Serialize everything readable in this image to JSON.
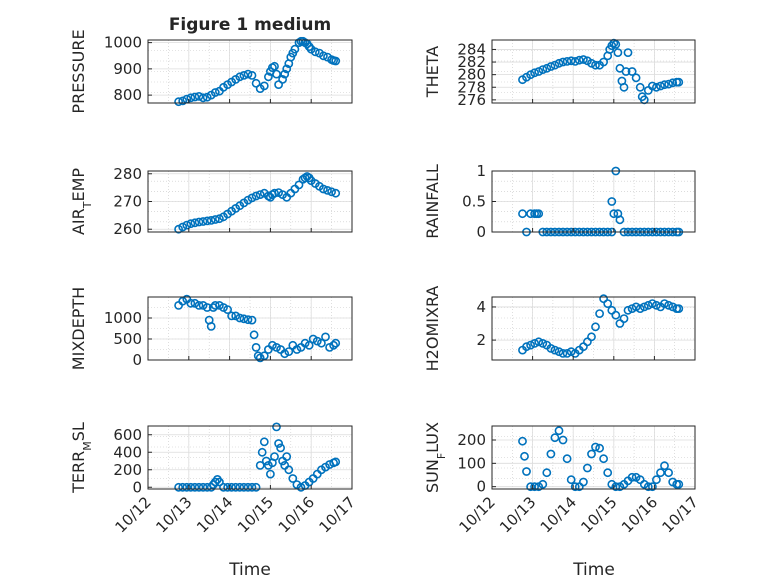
{
  "figure_title": "Figure 1 medium",
  "x_axis_label": "Time",
  "x_ticks": [
    "10/12",
    "10/13",
    "10/14",
    "10/15",
    "10/16",
    "10/17"
  ],
  "colors": {
    "marker": "#0072BD",
    "axes": "#262626",
    "grid": "#c8c8c8",
    "background": "#ffffff"
  },
  "chart_data": [
    {
      "type": "scatter",
      "id": "pressure",
      "ylabel": "PRESSURE",
      "ylim": [
        770,
        1010
      ],
      "yticks": [
        800,
        900,
        1000
      ],
      "xlim": [
        0,
        5
      ],
      "x": [
        0.75,
        0.85,
        0.95,
        1.05,
        1.15,
        1.25,
        1.35,
        1.45,
        1.55,
        1.65,
        1.75,
        1.85,
        1.95,
        2.05,
        2.15,
        2.25,
        2.35,
        2.45,
        2.55,
        2.65,
        2.75,
        2.85,
        2.95,
        3.0,
        3.05,
        3.1,
        3.15,
        3.2,
        3.3,
        3.35,
        3.4,
        3.45,
        3.5,
        3.55,
        3.6,
        3.7,
        3.75,
        3.8,
        3.85,
        3.9,
        3.95,
        4.0,
        4.1,
        4.2,
        4.3,
        4.4,
        4.5,
        4.55,
        4.6
      ],
      "y": [
        775,
        778,
        785,
        790,
        793,
        795,
        790,
        792,
        800,
        810,
        815,
        830,
        840,
        850,
        860,
        870,
        875,
        880,
        875,
        845,
        825,
        835,
        870,
        890,
        905,
        910,
        880,
        840,
        860,
        880,
        900,
        920,
        945,
        960,
        975,
        1000,
        1005,
        1005,
        1000,
        995,
        985,
        975,
        965,
        960,
        950,
        945,
        935,
        932,
        930
      ]
    },
    {
      "type": "scatter",
      "id": "theta",
      "ylabel": "THETA",
      "ylim": [
        275.5,
        285.5
      ],
      "yticks": [
        276,
        278,
        280,
        282,
        284
      ],
      "xlim": [
        0,
        5
      ],
      "x": [
        0.75,
        0.85,
        0.95,
        1.05,
        1.15,
        1.25,
        1.35,
        1.45,
        1.55,
        1.65,
        1.75,
        1.85,
        1.95,
        2.05,
        2.15,
        2.25,
        2.35,
        2.45,
        2.55,
        2.65,
        2.75,
        2.85,
        2.9,
        2.95,
        3.0,
        3.05,
        3.1,
        3.15,
        3.2,
        3.25,
        3.3,
        3.35,
        3.45,
        3.55,
        3.65,
        3.7,
        3.75,
        3.85,
        3.95,
        4.05,
        4.15,
        4.25,
        4.35,
        4.45,
        4.55,
        4.6
      ],
      "y": [
        279.2,
        279.6,
        280.0,
        280.3,
        280.5,
        280.8,
        281.0,
        281.3,
        281.5,
        281.8,
        282.0,
        282.1,
        282.2,
        282.1,
        282.3,
        282.4,
        282.2,
        281.8,
        281.5,
        281.5,
        282.0,
        283.0,
        284.0,
        284.6,
        285.0,
        284.8,
        283.5,
        281.0,
        279.0,
        278.0,
        280.5,
        283.5,
        280.5,
        279.5,
        278.0,
        276.5,
        276.0,
        277.5,
        278.2,
        278.0,
        278.2,
        278.4,
        278.5,
        278.7,
        278.8,
        278.8
      ]
    },
    {
      "type": "scatter",
      "id": "air_temp",
      "ylabel": "AIR_TEMP",
      "ylim": [
        259,
        281
      ],
      "yticks": [
        260,
        270,
        280
      ],
      "xlim": [
        0,
        5
      ],
      "x": [
        0.75,
        0.85,
        0.95,
        1.05,
        1.15,
        1.25,
        1.35,
        1.45,
        1.55,
        1.65,
        1.75,
        1.85,
        1.95,
        2.05,
        2.15,
        2.25,
        2.35,
        2.45,
        2.55,
        2.65,
        2.75,
        2.85,
        2.95,
        3.0,
        3.05,
        3.1,
        3.2,
        3.3,
        3.4,
        3.5,
        3.6,
        3.7,
        3.8,
        3.85,
        3.9,
        3.95,
        4.0,
        4.1,
        4.2,
        4.3,
        4.4,
        4.5,
        4.6
      ],
      "y": [
        260.0,
        260.8,
        261.5,
        262.0,
        262.3,
        262.6,
        262.8,
        263.0,
        263.2,
        263.5,
        263.8,
        264.5,
        265.5,
        266.5,
        267.5,
        268.5,
        269.5,
        270.5,
        271.3,
        272.0,
        272.5,
        273.0,
        272.0,
        271.5,
        272.5,
        273.0,
        273.2,
        272.5,
        271.5,
        273.0,
        274.5,
        276.0,
        278.0,
        278.5,
        279.0,
        278.5,
        277.5,
        276.5,
        275.5,
        274.5,
        274.0,
        273.5,
        273.0
      ]
    },
    {
      "type": "scatter",
      "id": "rainfall",
      "ylabel": "RAINFALL",
      "ylim": [
        0,
        1
      ],
      "yticks": [
        0,
        0.5,
        1
      ],
      "xlim": [
        0,
        5
      ],
      "x": [
        0.75,
        0.85,
        0.95,
        1.05,
        1.1,
        1.15,
        1.25,
        1.35,
        1.45,
        1.55,
        1.65,
        1.75,
        1.85,
        1.95,
        2.05,
        2.15,
        2.25,
        2.35,
        2.45,
        2.55,
        2.65,
        2.75,
        2.85,
        2.95,
        2.95,
        3.0,
        3.05,
        3.1,
        3.15,
        3.25,
        3.35,
        3.45,
        3.55,
        3.65,
        3.75,
        3.85,
        3.95,
        4.05,
        4.15,
        4.25,
        4.35,
        4.45,
        4.55,
        4.6
      ],
      "y": [
        0.3,
        0,
        0.3,
        0.3,
        0.3,
        0.3,
        0,
        0,
        0,
        0,
        0,
        0,
        0,
        0,
        0,
        0,
        0,
        0,
        0,
        0,
        0,
        0,
        0,
        0.5,
        0,
        0.3,
        1.0,
        0.3,
        0.2,
        0,
        0,
        0,
        0,
        0,
        0,
        0,
        0,
        0,
        0,
        0,
        0,
        0,
        0,
        0
      ]
    },
    {
      "type": "scatter",
      "id": "mixdepth",
      "ylabel": "MIXDEPTH",
      "ylim": [
        0,
        1500
      ],
      "yticks": [
        0,
        500,
        1000
      ],
      "xlim": [
        0,
        5
      ],
      "x": [
        0.75,
        0.85,
        0.95,
        1.05,
        1.15,
        1.25,
        1.35,
        1.45,
        1.5,
        1.55,
        1.6,
        1.65,
        1.75,
        1.85,
        1.95,
        2.05,
        2.15,
        2.25,
        2.35,
        2.45,
        2.55,
        2.6,
        2.65,
        2.7,
        2.75,
        2.85,
        2.95,
        3.05,
        3.15,
        3.25,
        3.35,
        3.45,
        3.55,
        3.65,
        3.75,
        3.85,
        3.95,
        4.05,
        4.15,
        4.25,
        4.35,
        4.45,
        4.55,
        4.6
      ],
      "y": [
        1300,
        1400,
        1450,
        1350,
        1350,
        1300,
        1300,
        1250,
        950,
        800,
        1250,
        1300,
        1300,
        1250,
        1200,
        1050,
        1050,
        1000,
        980,
        960,
        950,
        600,
        300,
        100,
        50,
        100,
        250,
        350,
        300,
        250,
        150,
        200,
        350,
        250,
        300,
        400,
        350,
        500,
        450,
        400,
        550,
        300,
        350,
        400
      ]
    },
    {
      "type": "scatter",
      "id": "h2omixra",
      "ylabel": "H2OMIXRA",
      "ylim": [
        0.8,
        4.6
      ],
      "yticks": [
        2,
        4
      ],
      "xlim": [
        0,
        5
      ],
      "x": [
        0.75,
        0.85,
        0.95,
        1.05,
        1.15,
        1.25,
        1.35,
        1.45,
        1.55,
        1.65,
        1.75,
        1.85,
        1.95,
        2.05,
        2.15,
        2.25,
        2.35,
        2.45,
        2.55,
        2.65,
        2.75,
        2.85,
        2.95,
        3.05,
        3.15,
        3.25,
        3.35,
        3.45,
        3.55,
        3.65,
        3.75,
        3.85,
        3.95,
        4.05,
        4.15,
        4.25,
        4.35,
        4.45,
        4.55,
        4.6
      ],
      "y": [
        1.4,
        1.6,
        1.7,
        1.8,
        1.9,
        1.8,
        1.7,
        1.5,
        1.4,
        1.3,
        1.2,
        1.2,
        1.3,
        1.2,
        1.4,
        1.6,
        1.9,
        2.2,
        2.8,
        3.6,
        4.5,
        4.2,
        3.8,
        3.5,
        3.0,
        3.3,
        3.8,
        3.9,
        4.0,
        3.9,
        4.0,
        4.1,
        4.2,
        4.1,
        4.0,
        4.2,
        4.1,
        4.0,
        3.9,
        3.9
      ]
    },
    {
      "type": "scatter",
      "id": "terr_msl",
      "ylabel": "TERR_MSL",
      "ylim": [
        -20,
        700
      ],
      "yticks": [
        0,
        200,
        400,
        600
      ],
      "xlim": [
        0,
        5
      ],
      "x": [
        0.75,
        0.85,
        0.95,
        1.05,
        1.15,
        1.25,
        1.35,
        1.45,
        1.55,
        1.6,
        1.65,
        1.7,
        1.75,
        1.85,
        1.95,
        2.05,
        2.15,
        2.25,
        2.35,
        2.45,
        2.55,
        2.65,
        2.75,
        2.8,
        2.85,
        2.9,
        2.95,
        3.0,
        3.05,
        3.1,
        3.15,
        3.2,
        3.25,
        3.3,
        3.35,
        3.4,
        3.45,
        3.55,
        3.65,
        3.75,
        3.85,
        3.95,
        4.05,
        4.15,
        4.25,
        4.35,
        4.45,
        4.55,
        4.6
      ],
      "y": [
        0,
        0,
        0,
        0,
        0,
        0,
        0,
        0,
        0,
        30,
        60,
        90,
        60,
        0,
        0,
        0,
        0,
        0,
        0,
        0,
        0,
        0,
        250,
        400,
        520,
        300,
        250,
        150,
        280,
        350,
        690,
        500,
        450,
        300,
        250,
        350,
        200,
        100,
        30,
        0,
        20,
        60,
        100,
        150,
        200,
        230,
        260,
        280,
        290
      ]
    },
    {
      "type": "scatter",
      "id": "sun_flux",
      "ylabel": "SUN_FLUX",
      "ylim": [
        -10,
        260
      ],
      "yticks": [
        0,
        100,
        200
      ],
      "xlim": [
        0,
        5
      ],
      "x": [
        0.75,
        0.8,
        0.85,
        0.95,
        1.05,
        1.15,
        1.25,
        1.35,
        1.45,
        1.55,
        1.65,
        1.75,
        1.85,
        1.95,
        2.05,
        2.15,
        2.25,
        2.35,
        2.45,
        2.55,
        2.65,
        2.75,
        2.85,
        2.95,
        3.05,
        3.15,
        3.25,
        3.35,
        3.45,
        3.55,
        3.65,
        3.75,
        3.85,
        3.95,
        4.05,
        4.15,
        4.25,
        4.35,
        4.45,
        4.55,
        4.6
      ],
      "y": [
        195,
        130,
        65,
        0,
        0,
        0,
        10,
        60,
        140,
        210,
        240,
        200,
        120,
        30,
        0,
        0,
        20,
        80,
        140,
        170,
        165,
        120,
        60,
        10,
        0,
        0,
        10,
        25,
        40,
        40,
        30,
        10,
        0,
        0,
        30,
        60,
        90,
        60,
        20,
        10,
        10
      ]
    }
  ]
}
